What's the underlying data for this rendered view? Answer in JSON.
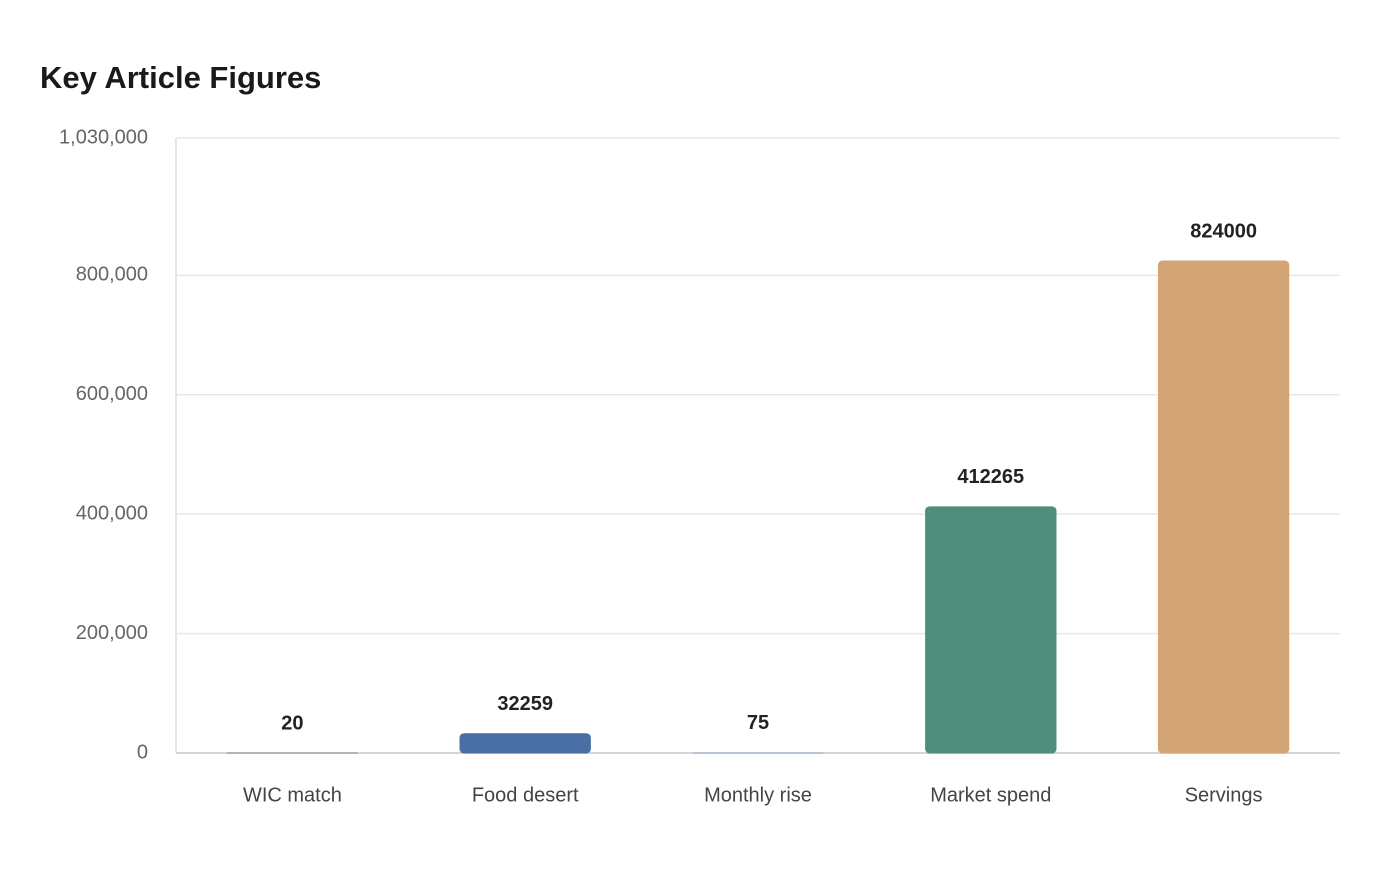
{
  "chart_data": {
    "type": "bar",
    "title": "Key Article Figures",
    "categories": [
      "WIC match",
      "Food desert",
      "Monthly rise",
      "Market spend",
      "Servings"
    ],
    "values": [
      20,
      32259,
      75,
      412265,
      824000
    ],
    "colors": [
      "#8a8a8a",
      "#4a6fa5",
      "#8fa8cc",
      "#4f8e7c",
      "#d4a574"
    ],
    "ylim": [
      0,
      1030000
    ],
    "yticks": [
      0,
      {
        "value": 200000,
        "label": "200,000"
      },
      {
        "value": 400000,
        "label": "400,000"
      },
      {
        "value": 600000,
        "label": "600,000"
      },
      {
        "value": 800000,
        "label": "800,000"
      },
      {
        "value": 1030000,
        "label": "1,030,000"
      }
    ],
    "grid": true
  }
}
